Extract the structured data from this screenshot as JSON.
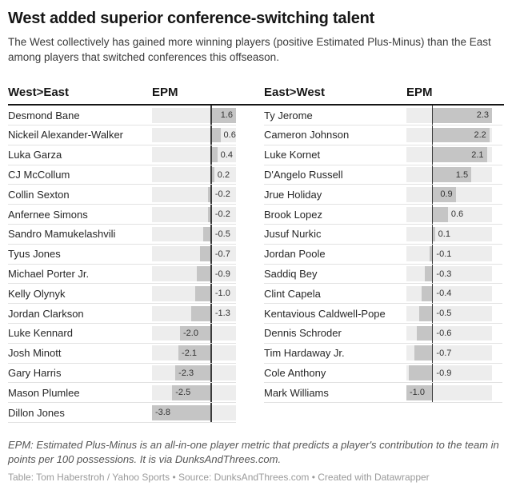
{
  "header": {
    "title": "West added superior conference-switching talent",
    "subtitle": "The West collectively has gained more winning players (positive Estimated Plus-Minus) than the East among players that switched conferences this offseason."
  },
  "tables": [
    {
      "name_header": "West>East",
      "epm_header": "EPM"
    },
    {
      "name_header": "East>West",
      "epm_header": "EPM"
    }
  ],
  "chart_data": [
    {
      "type": "bar",
      "orientation": "horizontal",
      "group": "West>East",
      "value_label": "EPM",
      "categories": [
        "Desmond Bane",
        "Nickeil Alexander-Walker",
        "Luka Garza",
        "CJ McCollum",
        "Collin Sexton",
        "Anfernee Simons",
        "Sandro Mamukelashvili",
        "Tyus Jones",
        "Michael Porter Jr.",
        "Kelly Olynyk",
        "Jordan Clarkson",
        "Luke Kennard",
        "Josh Minott",
        "Gary Harris",
        "Mason Plumlee",
        "Dillon Jones"
      ],
      "values": [
        1.6,
        0.6,
        0.4,
        0.2,
        -0.2,
        -0.2,
        -0.5,
        -0.7,
        -0.9,
        -1.0,
        -1.3,
        -2.0,
        -2.1,
        -2.3,
        -2.5,
        -3.8
      ],
      "xlim": [
        -3.8,
        1.6
      ],
      "grid": false,
      "legend": "none"
    },
    {
      "type": "bar",
      "orientation": "horizontal",
      "group": "East>West",
      "value_label": "EPM",
      "categories": [
        "Ty Jerome",
        "Cameron Johnson",
        "Luke Kornet",
        "D'Angelo Russell",
        "Jrue Holiday",
        "Brook Lopez",
        "Jusuf Nurkic",
        "Jordan Poole",
        "Saddiq Bey",
        "Clint Capela",
        "Kentavious Caldwell-Pope",
        "Dennis Schroder",
        "Tim Hardaway Jr.",
        "Cole Anthony",
        "Mark Williams"
      ],
      "values": [
        2.3,
        2.2,
        2.1,
        1.5,
        0.9,
        0.6,
        0.1,
        -0.1,
        -0.3,
        -0.4,
        -0.5,
        -0.6,
        -0.7,
        -0.9,
        -1.0
      ],
      "xlim": [
        -1.0,
        2.3
      ],
      "grid": false,
      "legend": "none"
    }
  ],
  "footer": {
    "footnote": "EPM: Estimated Plus-Minus is an all-in-one player metric that predicts a player's contribution to the team in points per 100 possessions. It is via DunksAndThrees.com.",
    "credit": "Table: Tom Haberstroh / Yahoo Sports • Source: DunksAndThrees.com • Created with Datawrapper"
  },
  "colors": {
    "bar": "#c5c5c5",
    "track": "#ededed",
    "zero_axis": "#3a3a3a",
    "header_rule": "#161616",
    "row_separator": "#e2e2e2",
    "title_text": "#161616",
    "value_text": "#333333",
    "credit_text": "#9a9a9a"
  }
}
